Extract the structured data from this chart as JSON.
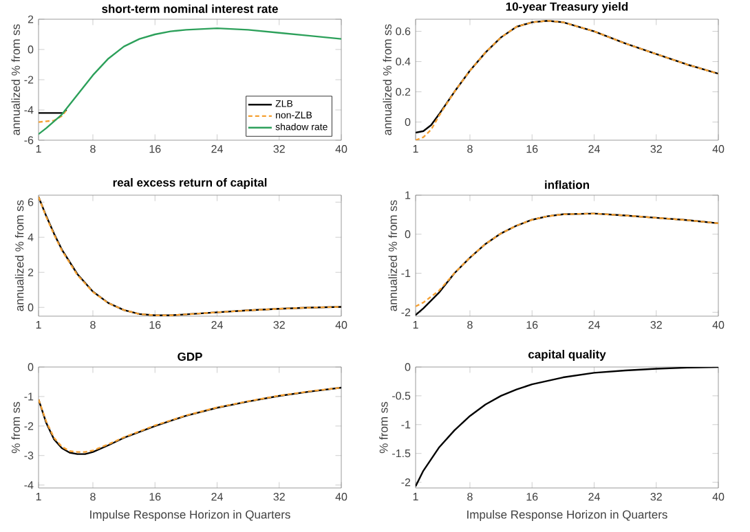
{
  "chart_data": [
    {
      "type": "line",
      "title": "short-term nominal interest rate",
      "ylabel": "annualized % from ss",
      "xlim": [
        1,
        40
      ],
      "xticks": [
        1,
        8,
        16,
        24,
        32,
        40
      ],
      "ylim": [
        -6,
        2
      ],
      "yticks": [
        -6,
        -4,
        -2,
        0,
        2
      ],
      "legend": "bottom right",
      "series": [
        {
          "name": "ZLB",
          "color": "#000000",
          "line_style": "solid",
          "x": [
            1,
            4.2,
            4.6
          ],
          "values": [
            -4.2,
            -4.2,
            -4.0
          ]
        },
        {
          "name": "non-ZLB",
          "color": "#f5a032",
          "line_style": "dashed",
          "x": [
            1,
            3,
            4,
            4.6
          ],
          "values": [
            -4.8,
            -4.7,
            -4.4,
            -4.0
          ]
        },
        {
          "name": "shadow rate",
          "color": "#2ca05a",
          "line_style": "solid",
          "x": [
            1,
            2,
            4,
            6,
            8,
            10,
            12,
            14,
            16,
            18,
            20,
            24,
            28,
            32,
            36,
            40
          ],
          "values": [
            -5.6,
            -5.2,
            -4.3,
            -3.0,
            -1.7,
            -0.6,
            0.2,
            0.7,
            1.0,
            1.2,
            1.3,
            1.4,
            1.3,
            1.1,
            0.9,
            0.7
          ]
        }
      ]
    },
    {
      "type": "line",
      "title": "10-year Treasury yield",
      "ylabel": "annualized % from ss",
      "xlim": [
        1,
        40
      ],
      "xticks": [
        1,
        8,
        16,
        24,
        32,
        40
      ],
      "ylim": [
        -0.12,
        0.68
      ],
      "yticks": [
        0,
        0.2,
        0.4,
        0.6
      ],
      "series": [
        {
          "color": "#000000",
          "line_style": "solid",
          "x": [
            1,
            2,
            3,
            4,
            6,
            8,
            10,
            12,
            14,
            16,
            18,
            20,
            24,
            28,
            32,
            36,
            40
          ],
          "values": [
            -0.07,
            -0.06,
            -0.02,
            0.05,
            0.2,
            0.34,
            0.46,
            0.56,
            0.63,
            0.66,
            0.67,
            0.66,
            0.6,
            0.52,
            0.45,
            0.38,
            0.32
          ]
        },
        {
          "color": "#f5a032",
          "line_style": "dashed",
          "x": [
            1,
            2,
            3,
            4,
            6,
            8,
            10,
            12,
            14,
            16,
            18,
            20,
            24,
            28,
            32,
            36,
            40
          ],
          "values": [
            -0.12,
            -0.1,
            -0.05,
            0.04,
            0.2,
            0.34,
            0.46,
            0.56,
            0.63,
            0.66,
            0.67,
            0.66,
            0.6,
            0.52,
            0.45,
            0.38,
            0.32
          ]
        }
      ]
    },
    {
      "type": "line",
      "title": "real excess return of capital",
      "ylabel": "annualized % from ss",
      "xlim": [
        1,
        40
      ],
      "xticks": [
        1,
        8,
        16,
        24,
        32,
        40
      ],
      "ylim": [
        -0.5,
        6.4
      ],
      "yticks": [
        0,
        2,
        4,
        6
      ],
      "series": [
        {
          "color": "#000000",
          "line_style": "solid",
          "x": [
            1,
            2,
            3,
            4,
            6,
            8,
            10,
            12,
            14,
            16,
            18,
            20,
            24,
            28,
            32,
            36,
            40
          ],
          "values": [
            6.3,
            5.2,
            4.2,
            3.3,
            1.9,
            0.9,
            0.25,
            -0.15,
            -0.38,
            -0.45,
            -0.45,
            -0.4,
            -0.28,
            -0.17,
            -0.08,
            -0.01,
            0.03
          ]
        },
        {
          "color": "#f5a032",
          "line_style": "dashed",
          "x": [
            1,
            2,
            3,
            4,
            6,
            8,
            10,
            12,
            14,
            16,
            18,
            20,
            24,
            28,
            32,
            36,
            40
          ],
          "values": [
            6.3,
            5.15,
            4.15,
            3.25,
            1.85,
            0.88,
            0.24,
            -0.15,
            -0.38,
            -0.45,
            -0.45,
            -0.4,
            -0.28,
            -0.17,
            -0.08,
            -0.01,
            0.03
          ]
        }
      ]
    },
    {
      "type": "line",
      "title": "inflation",
      "ylabel": "annualized % from ss",
      "xlim": [
        1,
        40
      ],
      "xticks": [
        1,
        8,
        16,
        24,
        32,
        40
      ],
      "ylim": [
        -2.1,
        1
      ],
      "yticks": [
        -2,
        -1,
        0,
        1
      ],
      "series": [
        {
          "color": "#000000",
          "line_style": "solid",
          "x": [
            1,
            2,
            4,
            6,
            8,
            10,
            12,
            14,
            16,
            18,
            20,
            24,
            28,
            32,
            36,
            40
          ],
          "values": [
            -2.07,
            -1.9,
            -1.5,
            -1.0,
            -0.6,
            -0.25,
            0.02,
            0.22,
            0.37,
            0.46,
            0.51,
            0.53,
            0.48,
            0.42,
            0.36,
            0.28
          ]
        },
        {
          "color": "#f5a032",
          "line_style": "dashed",
          "x": [
            1,
            2,
            4,
            6,
            8,
            10,
            12,
            14,
            16,
            18,
            20,
            24,
            28,
            32,
            36,
            40
          ],
          "values": [
            -1.85,
            -1.75,
            -1.45,
            -1.0,
            -0.6,
            -0.25,
            0.02,
            0.22,
            0.37,
            0.46,
            0.51,
            0.53,
            0.48,
            0.42,
            0.36,
            0.28
          ]
        }
      ]
    },
    {
      "type": "line",
      "title": "GDP",
      "xlabel": "Impulse Response Horizon in Quarters",
      "ylabel": "% from ss",
      "xlim": [
        1,
        40
      ],
      "xticks": [
        1,
        8,
        16,
        24,
        32,
        40
      ],
      "ylim": [
        -4.1,
        0
      ],
      "yticks": [
        -4,
        -3,
        -2,
        -1,
        0
      ],
      "series": [
        {
          "color": "#000000",
          "line_style": "solid",
          "x": [
            1,
            2,
            3,
            4,
            5,
            6,
            7,
            8,
            10,
            12,
            14,
            16,
            20,
            24,
            28,
            32,
            36,
            40
          ],
          "values": [
            -1.1,
            -1.9,
            -2.45,
            -2.75,
            -2.9,
            -2.95,
            -2.95,
            -2.88,
            -2.65,
            -2.4,
            -2.2,
            -2.0,
            -1.65,
            -1.38,
            -1.17,
            -0.98,
            -0.83,
            -0.7
          ]
        },
        {
          "color": "#f5a032",
          "line_style": "dashed",
          "x": [
            1,
            2,
            3,
            4,
            5,
            6,
            7,
            8,
            10,
            12,
            14,
            16,
            20,
            24,
            28,
            32,
            36,
            40
          ],
          "values": [
            -1.1,
            -1.85,
            -2.4,
            -2.7,
            -2.85,
            -2.88,
            -2.88,
            -2.83,
            -2.62,
            -2.38,
            -2.18,
            -1.98,
            -1.64,
            -1.37,
            -1.16,
            -0.97,
            -0.82,
            -0.7
          ]
        }
      ]
    },
    {
      "type": "line",
      "title": "capital quality",
      "xlabel": "Impulse Response Horizon in Quarters",
      "ylabel": "% from ss",
      "xlim": [
        1,
        40
      ],
      "xticks": [
        1,
        8,
        16,
        24,
        32,
        40
      ],
      "ylim": [
        -2.1,
        0
      ],
      "yticks": [
        -2,
        -1.5,
        -1,
        -0.5,
        0
      ],
      "series": [
        {
          "color": "#000000",
          "line_style": "solid",
          "x": [
            1,
            2,
            4,
            6,
            8,
            10,
            12,
            14,
            16,
            20,
            24,
            28,
            32,
            36,
            40
          ],
          "values": [
            -2.07,
            -1.8,
            -1.4,
            -1.1,
            -0.85,
            -0.65,
            -0.5,
            -0.39,
            -0.3,
            -0.18,
            -0.1,
            -0.06,
            -0.03,
            -0.01,
            0
          ]
        }
      ]
    }
  ]
}
